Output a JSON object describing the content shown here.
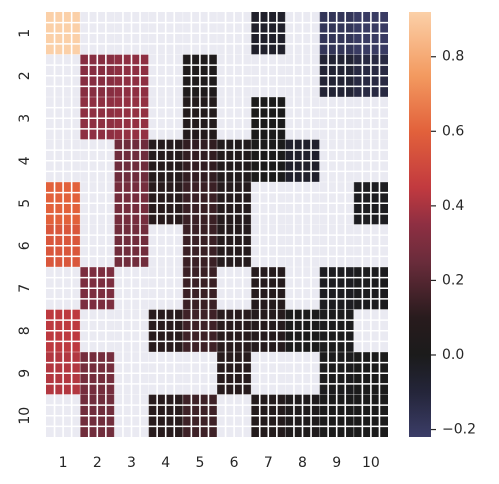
{
  "chart_data": {
    "type": "heatmap",
    "title": "",
    "xlabel": "",
    "ylabel": "",
    "x_categories": [
      "1",
      "2",
      "3",
      "4",
      "5",
      "6",
      "7",
      "8",
      "9",
      "10"
    ],
    "y_categories": [
      "1",
      "2",
      "3",
      "4",
      "5",
      "6",
      "7",
      "8",
      "9",
      "10"
    ],
    "values": [
      [
        0.92,
        null,
        null,
        null,
        null,
        null,
        -0.05,
        null,
        -0.18,
        -0.21
      ],
      [
        null,
        0.33,
        0.35,
        null,
        0.03,
        null,
        null,
        null,
        -0.08,
        -0.12
      ],
      [
        null,
        0.35,
        0.36,
        null,
        0.06,
        null,
        0.0,
        null,
        null,
        null
      ],
      [
        null,
        null,
        0.26,
        0.08,
        0.12,
        0.05,
        0.0,
        -0.05,
        null,
        null
      ],
      [
        0.6,
        null,
        0.28,
        0.1,
        0.14,
        0.08,
        null,
        null,
        null,
        -0.02
      ],
      [
        0.56,
        null,
        0.27,
        null,
        0.14,
        0.08,
        null,
        null,
        null,
        null
      ],
      [
        null,
        0.3,
        null,
        null,
        0.14,
        null,
        0.08,
        null,
        -0.02,
        -0.01
      ],
      [
        0.44,
        null,
        null,
        0.1,
        0.15,
        0.1,
        0.08,
        0.0,
        -0.01,
        null
      ],
      [
        0.42,
        0.28,
        null,
        null,
        null,
        0.09,
        null,
        null,
        -0.01,
        0.0
      ],
      [
        null,
        0.27,
        null,
        0.1,
        0.15,
        null,
        0.06,
        0.03,
        0.0,
        0.0
      ]
    ],
    "missing_color": "#eaeaf2",
    "grid_color": "#ffffff",
    "colorbar": {
      "vmin": -0.22,
      "vmax": 0.92,
      "ticks": [
        -0.2,
        0.0,
        0.2,
        0.4,
        0.6,
        0.8
      ],
      "tick_labels": [
        "−0.2",
        "0.0",
        "0.2",
        "0.4",
        "0.6",
        "0.8"
      ]
    },
    "colormap_stops": [
      {
        "v": -0.22,
        "color": "#3b3d67"
      },
      {
        "v": -0.1,
        "color": "#24253a"
      },
      {
        "v": 0.0,
        "color": "#1b1b1b"
      },
      {
        "v": 0.1,
        "color": "#281b1d"
      },
      {
        "v": 0.25,
        "color": "#6a2c3b"
      },
      {
        "v": 0.35,
        "color": "#8e2f42"
      },
      {
        "v": 0.45,
        "color": "#c23a3f"
      },
      {
        "v": 0.6,
        "color": "#e2613b"
      },
      {
        "v": 0.75,
        "color": "#f39a60"
      },
      {
        "v": 0.92,
        "color": "#fbd0a8"
      }
    ]
  }
}
